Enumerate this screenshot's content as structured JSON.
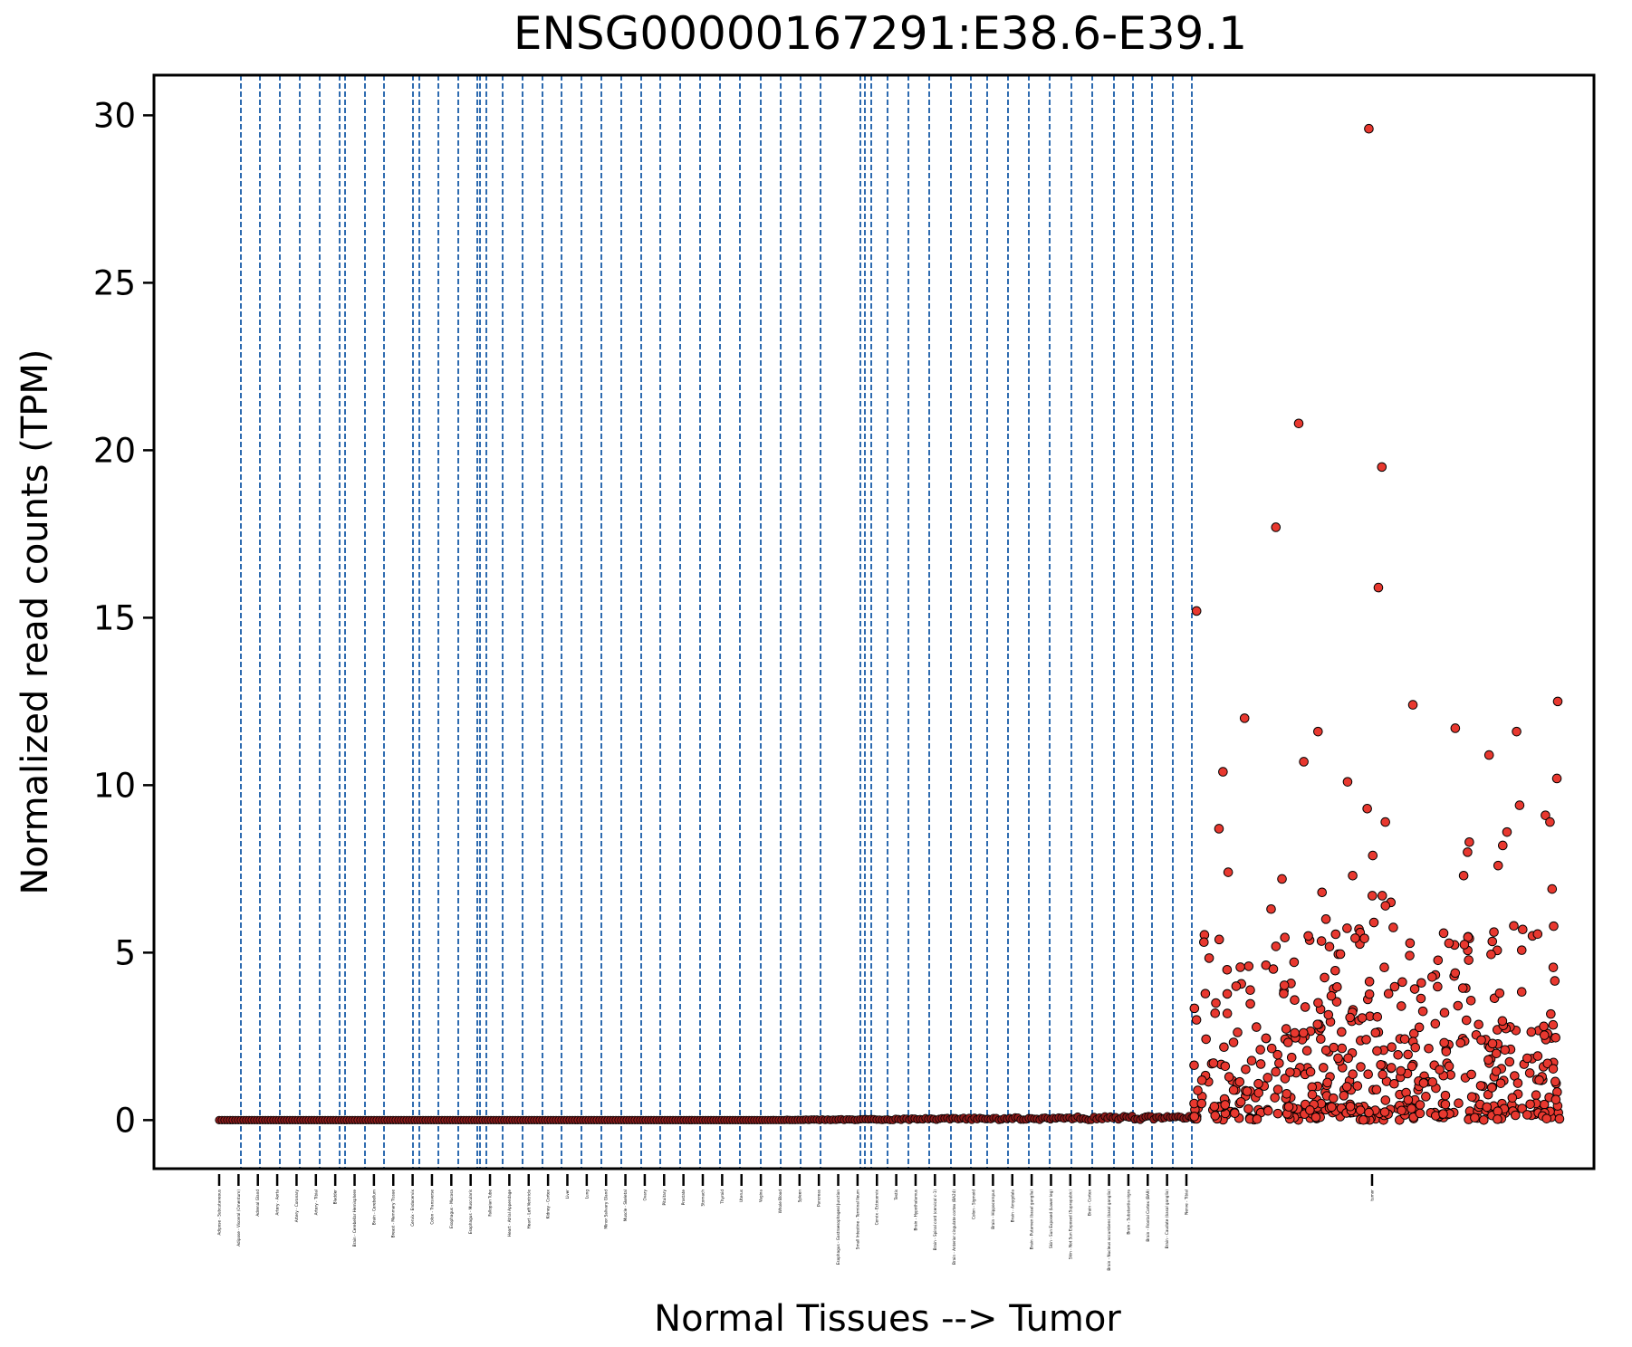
{
  "chart_data": {
    "type": "scatter",
    "title": "ENSG00000167291:E38.6-E39.1",
    "xlabel": "Normal Tissues --> Tumor",
    "ylabel": "Normalized read counts (TPM)",
    "ylim": [
      -1.45,
      31.2
    ],
    "yticks": [
      0,
      5,
      10,
      15,
      20,
      25,
      30
    ],
    "grid": false,
    "legend": "none",
    "colors": {
      "normal_point": "#8b1a1a",
      "tumor_point": "#e8382f",
      "separator": "#2e6bb0",
      "marker_edge": "#000000"
    },
    "categories": [
      "Adipose - Subcutaneous",
      "Adipose - Visceral (Omentum)",
      "Adrenal Gland",
      "Artery - Aorta",
      "Artery - Coronary",
      "Artery - Tibial",
      "Bladder",
      "Brain - Cerebellar Hemisphere",
      "Brain - Cerebellum",
      "Breast - Mammary Tissue",
      "Cervix - Endocervix",
      "Colon - Transverse",
      "Esophagus - Mucosa",
      "Esophagus - Muscularis",
      "Fallopian Tube",
      "Heart - Atrial Appendage",
      "Heart - Left Ventricle",
      "Kidney - Cortex",
      "Liver",
      "Lung",
      "Minor Salivary Gland",
      "Muscle - Skeletal",
      "Ovary",
      "Pituitary",
      "Prostate",
      "Stomach",
      "Thyroid",
      "Uterus",
      "Vagina",
      "Whole Blood",
      "Spleen",
      "Pancreas",
      "Esophagus - Gastroesophageal Junction",
      "Small Intestine - Terminal Ileum",
      "Cervix - Ectocervix",
      "Testis",
      "Brain - Hypothalamus",
      "Brain - Spinal cord (cervical c-1)",
      "Brain - Anterior cingulate cortex (BA24)",
      "Colon - Sigmoid",
      "Brain - Hippocampus",
      "Brain - Amygdala",
      "Brain - Putamen (basal ganglia)",
      "Skin - Sun Exposed (Lower leg)",
      "Skin - Not Sun Exposed (Suprapubic)",
      "Brain - Cortex",
      "Brain - Nucleus accumbens (basal ganglia)",
      "Brain - Substantia nigra",
      "Brain - Frontal Cortex (BA9)",
      "Brain - Caudate (basal ganglia)",
      "Nerve - Tibial",
      "tumor"
    ],
    "normal_range_by_tissue": {
      "min": 0.0,
      "max": 0.15
    },
    "tumor_notable_values": [
      29.6,
      20.8,
      19.5,
      17.7,
      15.9,
      15.2,
      12.5,
      12.4,
      12.0,
      11.7,
      11.6,
      11.6,
      10.9,
      10.7,
      10.4,
      10.2,
      10.1,
      9.4,
      9.3,
      9.1,
      8.9,
      8.9,
      8.7,
      8.6,
      8.3,
      8.2,
      8.0,
      7.9,
      7.6,
      7.4,
      7.3,
      7.3,
      7.2,
      6.9,
      6.8,
      6.7,
      6.7,
      6.5,
      6.4,
      6.3,
      6.0,
      5.9,
      5.8,
      5.7,
      5.6,
      5.5
    ],
    "tumor_value_range": [
      0,
      29.6
    ]
  }
}
